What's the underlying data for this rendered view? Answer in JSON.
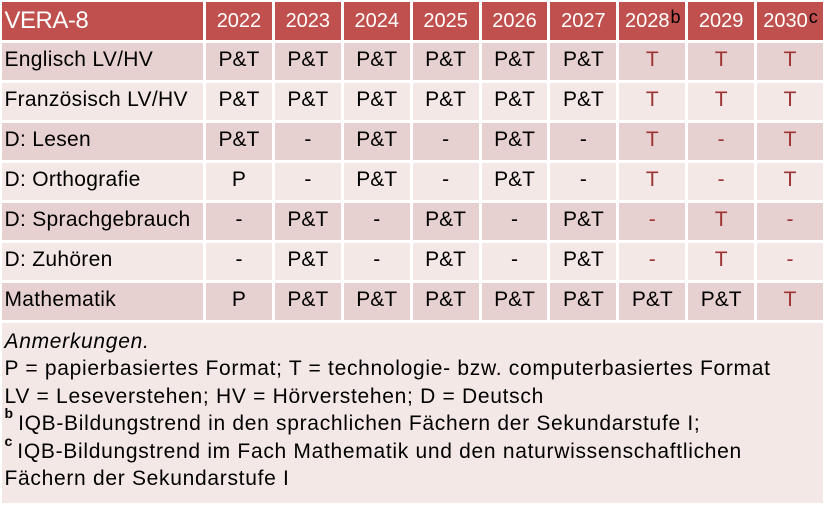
{
  "table": {
    "corner_label": "VERA-8",
    "year_columns": [
      {
        "year": "2022",
        "sup": ""
      },
      {
        "year": "2023",
        "sup": ""
      },
      {
        "year": "2024",
        "sup": ""
      },
      {
        "year": "2025",
        "sup": ""
      },
      {
        "year": "2026",
        "sup": ""
      },
      {
        "year": "2027",
        "sup": ""
      },
      {
        "year": "2028",
        "sup": "b"
      },
      {
        "year": "2029",
        "sup": ""
      },
      {
        "year": "2030",
        "sup": "c"
      }
    ],
    "rows": [
      {
        "label": "Englisch LV/HV",
        "cells": [
          "P&T",
          "P&T",
          "P&T",
          "P&T",
          "P&T",
          "P&T",
          "T",
          "T",
          "T"
        ]
      },
      {
        "label": "Französisch LV/HV",
        "cells": [
          "P&T",
          "P&T",
          "P&T",
          "P&T",
          "P&T",
          "P&T",
          "T",
          "T",
          "T"
        ]
      },
      {
        "label": "D: Lesen",
        "cells": [
          "P&T",
          "-",
          "P&T",
          "-",
          "P&T",
          "-",
          "T",
          "-",
          "T"
        ]
      },
      {
        "label": "D: Orthografie",
        "cells": [
          "P",
          "-",
          "P&T",
          "-",
          "P&T",
          "-",
          "T",
          "-",
          "T"
        ]
      },
      {
        "label": "D: Sprachgebrauch",
        "cells": [
          "-",
          "P&T",
          "-",
          "P&T",
          "-",
          "P&T",
          "-",
          "T",
          "-"
        ]
      },
      {
        "label": "D: Zuhören",
        "cells": [
          "-",
          "P&T",
          "-",
          "P&T",
          "-",
          "P&T",
          "-",
          "T",
          "-"
        ]
      },
      {
        "label": "Mathematik",
        "cells": [
          "P",
          "P&T",
          "P&T",
          "P&T",
          "P&T",
          "P&T",
          "P&T",
          "P&T",
          "T"
        ]
      }
    ],
    "red_text_columns_from_index": 6,
    "red_text_values": [
      "T",
      "-"
    ]
  },
  "notes": {
    "heading": "Anmerkungen.",
    "lines": [
      {
        "sup": "",
        "text": "P = papierbasiertes Format; T = technologie- bzw. computerbasiertes Format"
      },
      {
        "sup": "",
        "text": "LV = Leseverstehen; HV = Hörverstehen; D = Deutsch"
      },
      {
        "sup": "b",
        "text": "IQB-Bildungstrend in den sprachlichen Fächern der Sekundarstufe I;"
      },
      {
        "sup": "c",
        "text": "IQB-Bildungstrend im Fach Mathematik und den naturwissenschaftlichen Fächern der Sekundarstufe I"
      }
    ]
  },
  "colors": {
    "header_bg": "#c0504d",
    "band_a": "#e7d1d0",
    "band_b": "#f3e8e6",
    "red_text": "#9c3434",
    "header_text": "#ffffff",
    "header_footnote_marker_color": "#000000",
    "body_text": "#000000",
    "page_bg": "#ffffff"
  }
}
